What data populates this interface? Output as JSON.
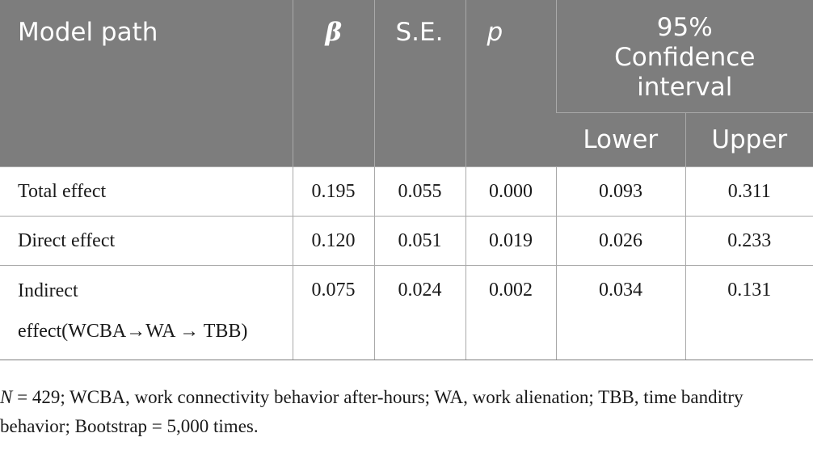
{
  "table": {
    "header": {
      "model_path": "Model path",
      "beta": "β",
      "se": "S.E.",
      "p": "p",
      "ci_line1": "95%",
      "ci_line2": "Confidence",
      "ci_line3": "interval",
      "lower": "Lower",
      "upper": "Upper"
    },
    "rows": [
      {
        "path": "Total effect",
        "beta": "0.195",
        "se": "0.055",
        "p": "0.000",
        "lower": "0.093",
        "upper": "0.311"
      },
      {
        "path": "Direct effect",
        "beta": "0.120",
        "se": "0.051",
        "p": "0.019",
        "lower": "0.026",
        "upper": "0.233"
      },
      {
        "path_line1": "Indirect",
        "path_line2": "effect(WCBA→WA → TBB)",
        "beta": "0.075",
        "se": "0.024",
        "p": "0.002",
        "lower": "0.034",
        "upper": "0.131"
      }
    ]
  },
  "footnote": {
    "n_symbol": "N",
    "text": " = 429; WCBA, work connectivity behavior after-hours; WA, work alienation; TBB, time banditry behavior; Bootstrap = 5,000 times."
  }
}
